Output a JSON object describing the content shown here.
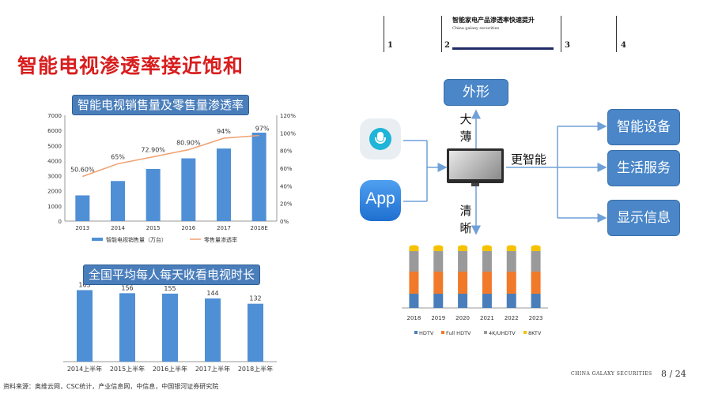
{
  "nav": {
    "steps": [
      "1",
      "2",
      "3",
      "4"
    ],
    "active_title": "智能家电产品渗透率快速提升",
    "active_subtitle": "China galaxy securities"
  },
  "page_title": "智能电视渗透率接近饱和",
  "chart_data": [
    {
      "type": "bar",
      "title": "智能电视销售量及零售量渗透率",
      "categories": [
        "2013",
        "2014",
        "2015",
        "2016",
        "2017",
        "2018E"
      ],
      "series": [
        {
          "name": "智能电视销售量（万台）",
          "type": "bar",
          "values": [
            1700,
            2650,
            3450,
            4150,
            4800,
            5850
          ],
          "axis": "left"
        },
        {
          "name": "零售量渗透率",
          "type": "line",
          "values": [
            50.6,
            65,
            72.9,
            80.9,
            94,
            97
          ],
          "axis": "right"
        }
      ],
      "data_labels": [
        "50.60%",
        "65%",
        "72.90%",
        "80.90%",
        "94%",
        "97%"
      ],
      "y_left": {
        "min": 0,
        "max": 7000,
        "ticks": [
          "0",
          "1000",
          "2000",
          "3000",
          "4000",
          "5000",
          "6000",
          "7000"
        ]
      },
      "y_right": {
        "min": 0,
        "max": 120,
        "ticks": [
          "0%",
          "20%",
          "40%",
          "60%",
          "80%",
          "100%",
          "120%"
        ]
      },
      "x_tick_labels": [
        "2013",
        "2014",
        "2015",
        "2016",
        "2017",
        "2018E"
      ],
      "colors": {
        "bar": "#4f8fd6",
        "line": "#f0a070"
      },
      "legend_position": "bottom"
    },
    {
      "type": "bar",
      "title": "全国平均每人每天收看电视时长",
      "categories": [
        "2014上半年",
        "2015上半年",
        "2016上半年",
        "2017上半年",
        "2018上半年"
      ],
      "values": [
        163,
        156,
        155,
        144,
        132
      ],
      "value_labels": [
        "163",
        "156",
        "155",
        "144",
        "132"
      ],
      "colors": {
        "bar": "#4f8fd6"
      }
    },
    {
      "type": "bar",
      "stacked": true,
      "categories": [
        "2018",
        "2019",
        "2020",
        "2021",
        "2022",
        "2023"
      ],
      "series": [
        {
          "name": "HDTV",
          "color": "#4a7ebb"
        },
        {
          "name": "Full HDTV",
          "color": "#f07a2a"
        },
        {
          "name": "4K/UHDTV",
          "color": "#9a9a9a"
        },
        {
          "name": "8KTV",
          "color": "#f5c200"
        }
      ],
      "legend_position": "bottom"
    }
  ],
  "diagram": {
    "top_box": "外形",
    "vertical_top": "大薄",
    "vertical_bottom": "清晰",
    "right_label": "更智能",
    "app_label": "App",
    "right_boxes": [
      "智能设备",
      "生活服务",
      "显示信息"
    ]
  },
  "footer": {
    "source": "资料来源：奥维云网，CSC统计，产业信息网，中信息，中国银河证券研究院",
    "brand": "CHINA GALAXY SECURITIES",
    "page": "8 / 24"
  }
}
